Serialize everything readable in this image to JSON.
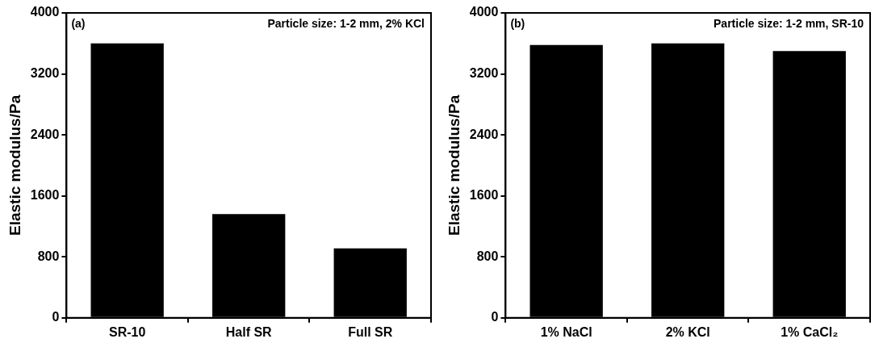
{
  "chart_data": [
    {
      "type": "bar",
      "annotations": [
        "(a)",
        "Particle size: 1-2 mm, 2% KCl"
      ],
      "ylabel": "Elastic modulus/Pa",
      "categories": [
        "SR-10",
        "Half SR",
        "Full SR"
      ],
      "values": [
        3600,
        1360,
        910
      ],
      "color": "#000000",
      "ylim": [
        0,
        4000
      ],
      "yticks": [
        0,
        800,
        1600,
        2400,
        3200,
        4000
      ],
      "grid": false,
      "legend": false
    },
    {
      "type": "bar",
      "annotations": [
        "(b)",
        "Particle size: 1-2 mm, SR-10"
      ],
      "ylabel": "Elastic modulus/Pa",
      "categories": [
        "1% NaCl",
        "2% KCl",
        "1% CaCl₂"
      ],
      "values": [
        3580,
        3600,
        3500
      ],
      "color": "#000000",
      "ylim": [
        0,
        4000
      ],
      "yticks": [
        0,
        800,
        1600,
        2400,
        3200,
        4000
      ],
      "grid": false,
      "legend": false
    }
  ]
}
